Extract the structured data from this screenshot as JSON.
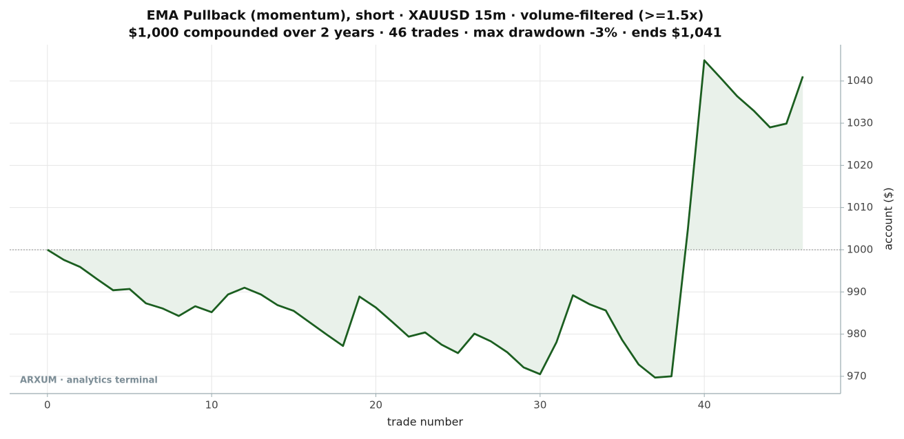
{
  "chart_data": {
    "type": "line",
    "title": "EMA Pullback (momentum), short · XAUUSD 15m · volume-filtered (>=1.5x)",
    "subtitle": "$1,000 compounded over 2 years · 46 trades · max drawdown -3% · ends $1,041",
    "x_label": "trade number",
    "y_label": "account ($)",
    "watermark": "ARXUM · analytics terminal",
    "x": [
      0,
      1,
      2,
      3,
      4,
      5,
      6,
      7,
      8,
      9,
      10,
      11,
      12,
      13,
      14,
      15,
      16,
      17,
      18,
      19,
      20,
      21,
      22,
      23,
      24,
      25,
      26,
      27,
      28,
      29,
      30,
      31,
      32,
      33,
      34,
      35,
      36,
      37,
      38,
      39,
      40,
      41,
      42,
      43,
      44,
      45,
      46
    ],
    "series": [
      {
        "name": "account",
        "color": "#1b5e20",
        "values": [
          1000,
          997.6,
          995.9,
          993.1,
          990.4,
          990.7,
          987.3,
          986.1,
          984.3,
          986.6,
          985.2,
          989.4,
          991.0,
          989.4,
          986.9,
          985.5,
          982.7,
          979.9,
          977.2,
          988.9,
          986.3,
          982.9,
          979.4,
          980.4,
          977.5,
          975.5,
          980.1,
          978.3,
          975.7,
          972.1,
          970.5,
          978.1,
          989.2,
          987.1,
          985.6,
          978.6,
          972.8,
          969.7,
          970.0,
          1004.9,
          1044.9,
          1040.7,
          1036.4,
          1033.0,
          1029.0,
          1029.9,
          1041.1
        ]
      }
    ],
    "baseline": 1000,
    "fill_color": "#e9f1ea",
    "xlim": [
      -2.3,
      48.3
    ],
    "ylim": [
      965.9,
      1048.6
    ],
    "xticks": [
      0,
      10,
      20,
      30,
      40
    ],
    "yticks": [
      970,
      980,
      990,
      1000,
      1010,
      1020,
      1030,
      1040
    ],
    "grid": true,
    "y_axis_side": "right"
  }
}
